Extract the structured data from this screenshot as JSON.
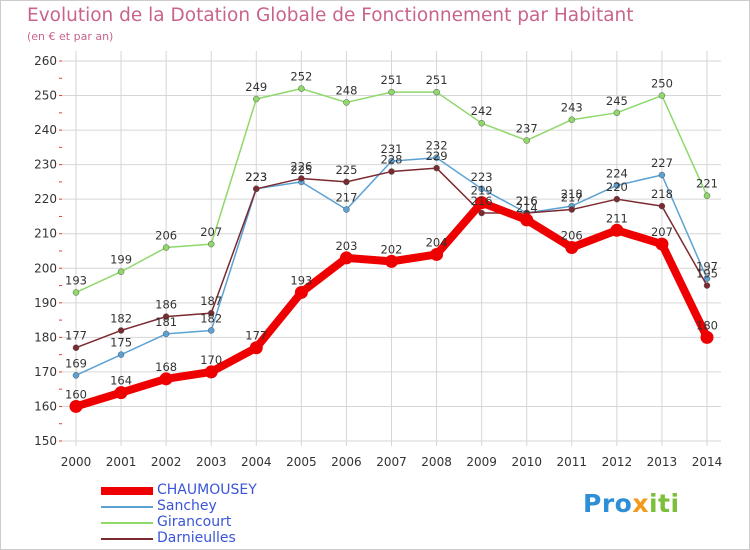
{
  "title": "Evolution de la Dotation Globale de Fonctionnement par Habitant",
  "subtitle": "(en € et par an)",
  "logo": {
    "text": "Proxiti",
    "part1": "Pro",
    "part2": "x",
    "part3": "iti"
  },
  "colors": {
    "CHAUMOUSEY": "#ee0000",
    "Sanchey": "#5ba1d4",
    "Girancourt": "#8fd86a",
    "Darnieulles": "#7a2a30"
  },
  "chart_data": {
    "type": "line",
    "title": "Evolution de la Dotation Globale de Fonctionnement par Habitant",
    "subtitle": "(en € et par an)",
    "xlabel": "",
    "ylabel": "",
    "categories": [
      "2000",
      "2001",
      "2002",
      "2003",
      "2004",
      "2005",
      "2006",
      "2007",
      "2008",
      "2009",
      "2010",
      "2011",
      "2012",
      "2013",
      "2014"
    ],
    "ylim": [
      150,
      260
    ],
    "yticks": [
      150,
      160,
      170,
      180,
      190,
      200,
      210,
      220,
      230,
      240,
      250,
      260
    ],
    "grid": true,
    "legend_position": "bottom-left",
    "series": [
      {
        "name": "CHAUMOUSEY",
        "values": [
          160,
          164,
          168,
          170,
          177,
          193,
          203,
          202,
          204,
          219,
          214,
          206,
          211,
          207,
          180
        ]
      },
      {
        "name": "Sanchey",
        "values": [
          169,
          175,
          181,
          182,
          223,
          225,
          217,
          231,
          232,
          223,
          216,
          218,
          224,
          227,
          197
        ]
      },
      {
        "name": "Girancourt",
        "values": [
          193,
          199,
          206,
          207,
          249,
          252,
          248,
          251,
          251,
          242,
          237,
          243,
          245,
          250,
          221
        ]
      },
      {
        "name": "Darnieulles",
        "values": [
          177,
          182,
          186,
          187,
          223,
          226,
          225,
          228,
          229,
          216,
          216,
          217,
          220,
          218,
          195
        ]
      }
    ]
  }
}
